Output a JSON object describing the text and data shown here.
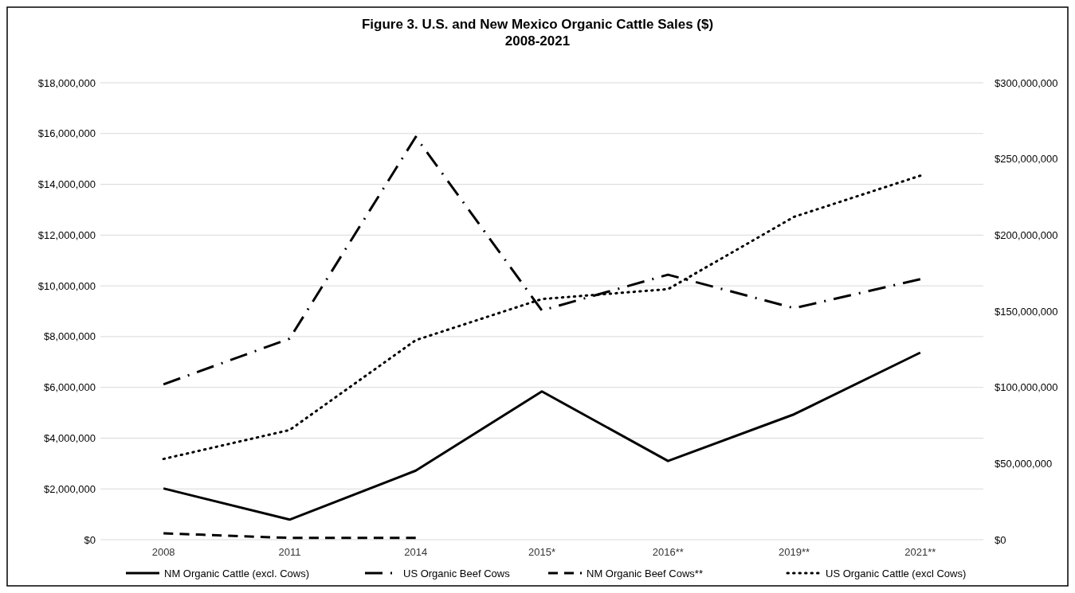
{
  "chart_data": {
    "type": "line",
    "title": "Figure 3. U.S. and New Mexico Organic Cattle Sales ($)",
    "subtitle": "2008-2021",
    "categories": [
      "2008",
      "2011",
      "2014",
      "2015*",
      "2016**",
      "2019**",
      "2021**"
    ],
    "series": [
      {
        "name": "NM Organic Cattle (excl. Cows)",
        "color": "#000000",
        "line_style": "solid",
        "values": [
          2020000,
          790000,
          2720000,
          5840000,
          3100000,
          4940000,
          7370000
        ]
      },
      {
        "name": "US Organic Beef Cows",
        "color": "#000000",
        "line_style": "dashdot",
        "axis": "y2",
        "values": [
          102000000,
          132000000,
          264500000,
          150500000,
          174000000,
          152000000,
          171000000
        ]
      },
      {
        "name": "NM Organic Beef Cows**",
        "color": "#000000",
        "line_style": "dashed",
        "values": [
          250000,
          70000,
          70000,
          null,
          null,
          null,
          null
        ]
      },
      {
        "name": "US Organic Cattle (excl Cows)",
        "color": "#000000",
        "line_style": "dotted",
        "axis": "y2",
        "values": [
          53000000,
          72000000,
          131000000,
          158000000,
          164500000,
          212000000,
          239000000
        ]
      }
    ],
    "ylim": [
      0,
      18000000
    ],
    "yticks": [
      {
        "value": 0,
        "label": "$0"
      },
      {
        "value": 2000000,
        "label": "$2,000,000"
      },
      {
        "value": 4000000,
        "label": "$4,000,000"
      },
      {
        "value": 6000000,
        "label": "$6,000,000"
      },
      {
        "value": 8000000,
        "label": "$8,000,000"
      },
      {
        "value": 10000000,
        "label": "$10,000,000"
      },
      {
        "value": 12000000,
        "label": "$12,000,000"
      },
      {
        "value": 14000000,
        "label": "$14,000,000"
      },
      {
        "value": 16000000,
        "label": "$16,000,000"
      },
      {
        "value": 18000000,
        "label": "$18,000,000"
      }
    ],
    "y2lim": [
      0,
      300000000
    ],
    "y2ticks": [
      {
        "value": 0,
        "label": "$0"
      },
      {
        "value": 50000000,
        "label": "$50,000,000"
      },
      {
        "value": 100000000,
        "label": "$100,000,000"
      },
      {
        "value": 150000000,
        "label": "$150,000,000"
      },
      {
        "value": 200000000,
        "label": "$200,000,000"
      },
      {
        "value": 250000000,
        "label": "$250,000,000"
      },
      {
        "value": 300000000,
        "label": "$300,000,000"
      }
    ],
    "grid": "y",
    "legend": "bottom"
  }
}
